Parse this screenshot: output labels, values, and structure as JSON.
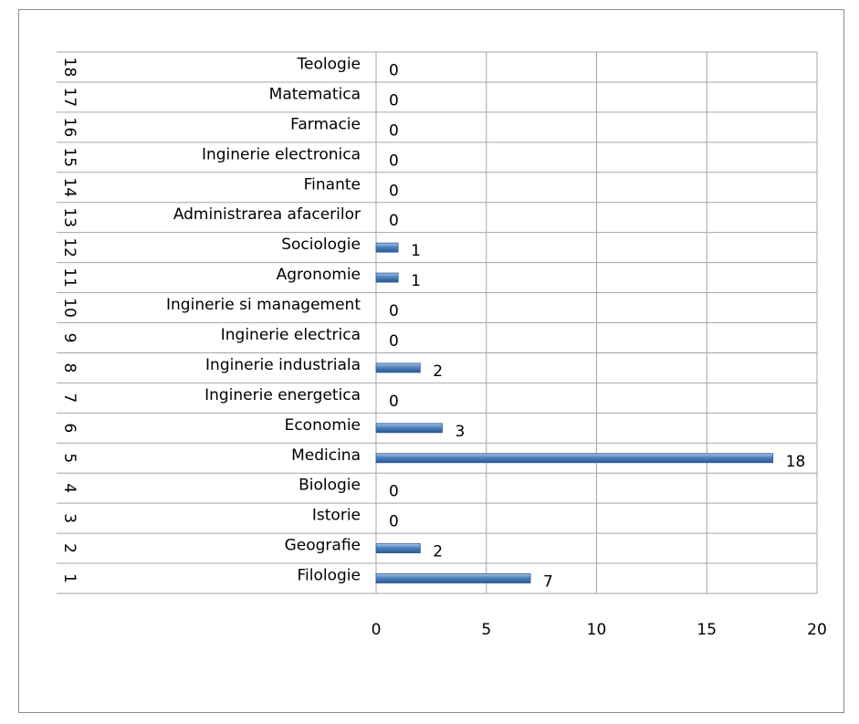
{
  "chart_data": {
    "type": "bar",
    "orientation": "horizontal",
    "group_labels": [
      "1",
      "2",
      "3",
      "4",
      "5",
      "6",
      "7",
      "8",
      "9",
      "10",
      "11",
      "12",
      "13",
      "14",
      "15",
      "16",
      "17",
      "18"
    ],
    "categories": [
      "Filologie",
      "Geografie",
      "Istorie",
      "Biologie",
      "Medicina",
      "Economie",
      "Inginerie energetica",
      "Inginerie industriala",
      "Inginerie electrica",
      "Inginerie si management",
      "Agronomie",
      "Sociologie",
      "Administrarea afacerilor",
      "Finante",
      "Inginerie electronica",
      "Farmacie",
      "Matematica",
      "Teologie"
    ],
    "values": [
      7,
      2,
      0,
      0,
      18,
      3,
      0,
      2,
      0,
      0,
      1,
      1,
      0,
      0,
      0,
      0,
      0,
      0
    ],
    "color": "#4f81bd",
    "xlim": [
      0,
      20
    ],
    "xticks": [
      0,
      5,
      10,
      15,
      20
    ],
    "grid": true
  }
}
